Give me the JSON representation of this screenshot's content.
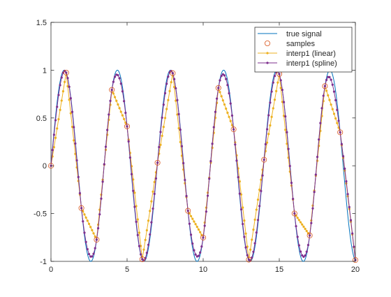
{
  "chart_data": {
    "type": "line",
    "title": "",
    "xlabel": "",
    "ylabel": "",
    "xlim": [
      0,
      20
    ],
    "ylim": [
      -1,
      1.5
    ],
    "xticks": [
      0,
      5,
      10,
      15,
      20
    ],
    "yticks": [
      -1,
      -0.5,
      0,
      0.5,
      1,
      1.5
    ],
    "xtick_labels": [
      "0",
      "5",
      "10",
      "15",
      "20"
    ],
    "ytick_labels": [
      "-1",
      "-0.5",
      "0",
      "0.5",
      "1",
      "1.5"
    ],
    "grid": false,
    "legend_position": "top-right",
    "true_signal": {
      "function": "sin",
      "angular_frequency": 1.8,
      "x_range": [
        0,
        20
      ]
    },
    "series": [
      {
        "name": "true signal",
        "style": "line",
        "color": "#0072BD"
      },
      {
        "name": "samples",
        "style": "markers",
        "marker": "open-circle",
        "color": "#D95319",
        "x": [
          0,
          1,
          2,
          3,
          4,
          5,
          6,
          7,
          8,
          9,
          10,
          11,
          12,
          13,
          14,
          15,
          16,
          17,
          18,
          19,
          20
        ],
        "y": [
          0,
          0.974,
          -0.443,
          -0.773,
          0.794,
          0.412,
          -0.978,
          0.032,
          0.968,
          -0.471,
          -0.751,
          0.814,
          0.381,
          -0.982,
          0.063,
          0.96,
          -0.499,
          -0.729,
          0.833,
          0.35,
          -0.986
        ]
      },
      {
        "name": "interp1 (linear)",
        "style": "line-dot-markers",
        "color": "#EDB120"
      },
      {
        "name": "interp1 (spline)",
        "style": "line-dot-markers",
        "color": "#7E2F8E"
      }
    ],
    "query_step": 0.1
  }
}
